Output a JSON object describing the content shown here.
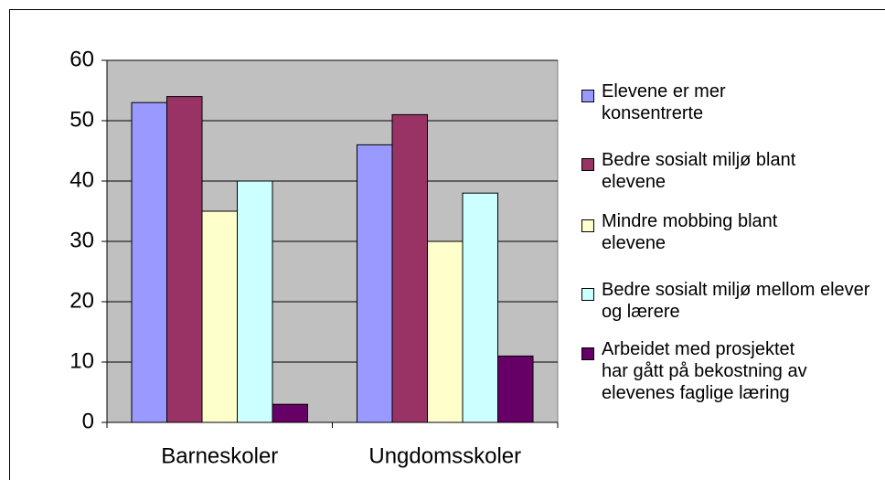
{
  "chart_data": {
    "type": "bar",
    "categories": [
      "Barneskoler",
      "Ungdomsskoler"
    ],
    "series": [
      {
        "name": "Elevene er mer konsentrerte",
        "color": "#9999ff",
        "values": [
          53,
          46
        ]
      },
      {
        "name": "Bedre sosialt miljø blant elevene",
        "color": "#993366",
        "values": [
          54,
          51
        ]
      },
      {
        "name": "Mindre mobbing blant elevene",
        "color": "#ffffcc",
        "values": [
          35,
          30
        ]
      },
      {
        "name": "Bedre sosialt miljø mellom elever og lærere",
        "color": "#ccffff",
        "values": [
          40,
          38
        ]
      },
      {
        "name": "Arbeidet med prosjektet har gått på bekostning av elevenes faglige læring",
        "color": "#660066",
        "values": [
          3,
          11
        ]
      }
    ],
    "ylim": [
      0,
      60
    ],
    "yticks": [
      0,
      10,
      20,
      30,
      40,
      50,
      60
    ],
    "grid": true,
    "plot_background": "#c0c0c0"
  }
}
